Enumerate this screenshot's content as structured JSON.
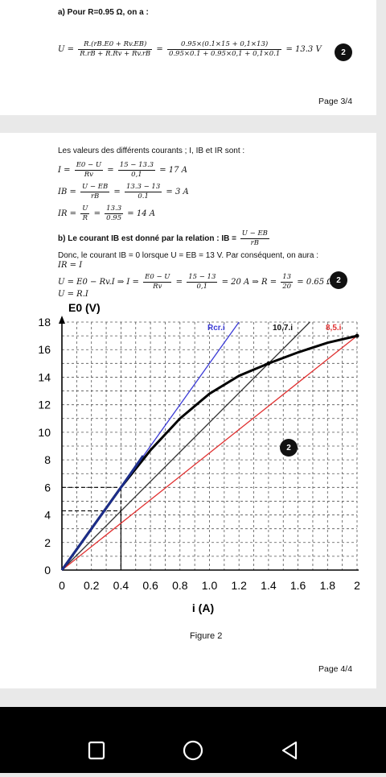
{
  "page1": {
    "part_a_heading": "a) Pour R=0.95 Ω, on a :",
    "eq_lhs": "U =",
    "frac1_num": "R.(rB.E0 + Rv.EB)",
    "frac1_den": "R.rB + R.Rv + Rv.rB",
    "frac2_num": "0.95×(0.1×15 + 0,1×13)",
    "frac2_den": "0.95×0.1 + 0.95×0,1 + 0,1×0.1",
    "eq_result": "= 13.3 V",
    "marker": "2",
    "page_number": "Page 3/4"
  },
  "page2": {
    "currents_intro": "Les valeurs des différents courants ; I, IB et IR sont :",
    "eq_I": {
      "lhs": "I =",
      "num1": "E0 − U",
      "den1": "Rv",
      "num2": "15 − 13.3",
      "den2": "0,1",
      "result": "= 17 A"
    },
    "eq_IB": {
      "lhs": "IB =",
      "num1": "U − EB",
      "den1": "rB",
      "num2": "13.3 − 13",
      "den2": "0.1",
      "result": "= 3 A"
    },
    "eq_IR": {
      "lhs": "IR =",
      "num1": "U",
      "den1": "R",
      "num2": "13.3",
      "den2": "0.95",
      "result": "= 14 A"
    },
    "part_b_text": "b) Le courant IB est donné par la relation : IB =",
    "part_b_num": "U − EB",
    "part_b_den": "rB",
    "donc_text": "Donc, le courant IB = 0 lorsque U = EB = 13 V. Par conséquent, on aura :",
    "line_IR_I": "IR = I",
    "line_U": "U = E0 − Rv.I   ⇒   I =",
    "line_U_num": "E0 − U",
    "line_U_den": "Rv",
    "line_U_mid": "=",
    "line_U_num2": "15 − 13",
    "line_U_den2": "0,1",
    "line_U_after": "= 20 A ⇒ R =",
    "line_U_num3": "13",
    "line_U_den3": "20",
    "line_U_end": "= 0.65 Ω",
    "line_URI": "U = R.I",
    "marker_eq": "2",
    "marker_chart": "2",
    "figure_caption": "Figure 2",
    "page_number": "Page 4/4"
  },
  "chart_data": {
    "type": "line",
    "title": "",
    "ylabel": "E0 (V)",
    "xlabel": "i (A)",
    "xlim": [
      0,
      2
    ],
    "ylim": [
      0,
      18
    ],
    "xticks": [
      "0",
      "0.2",
      "0.4",
      "0.6",
      "0.8",
      "1.0",
      "1.2",
      "1.4",
      "1.6",
      "1.8",
      "2"
    ],
    "yticks": [
      "0",
      "2",
      "4",
      "6",
      "8",
      "10",
      "12",
      "14",
      "16",
      "18"
    ],
    "grid": true,
    "series": [
      {
        "name": "Rcr.i",
        "color": "#3b3bd6",
        "x": [
          0,
          1.2
        ],
        "y": [
          0,
          18
        ]
      },
      {
        "name": "10,7.i",
        "color": "#333333",
        "x": [
          0,
          1.68
        ],
        "y": [
          0,
          18
        ]
      },
      {
        "name": "8,5.i",
        "color": "#e03030",
        "x": [
          0,
          2
        ],
        "y": [
          0,
          17
        ]
      },
      {
        "name": "",
        "color": "#000000",
        "x": [
          0,
          0.2,
          0.4,
          0.6,
          0.8,
          1.0,
          1.2,
          1.4,
          1.6,
          1.8,
          2.0
        ],
        "y": [
          0,
          3,
          6,
          8.7,
          11,
          12.8,
          14.1,
          15.0,
          15.8,
          16.5,
          17.0
        ]
      }
    ],
    "annotations": [
      {
        "text": "Rcr.i",
        "color": "#3b3bd6"
      },
      {
        "text": "10,7.i",
        "color": "#111111"
      },
      {
        "text": "8,5.i",
        "color": "#e03030"
      }
    ],
    "guides": [
      {
        "x": 0.4,
        "y": 6
      },
      {
        "x": 0.4,
        "y": 4.3
      }
    ]
  },
  "nav": {
    "square_icon": "recent-apps-icon",
    "circle_icon": "home-icon",
    "triangle_icon": "back-icon"
  }
}
